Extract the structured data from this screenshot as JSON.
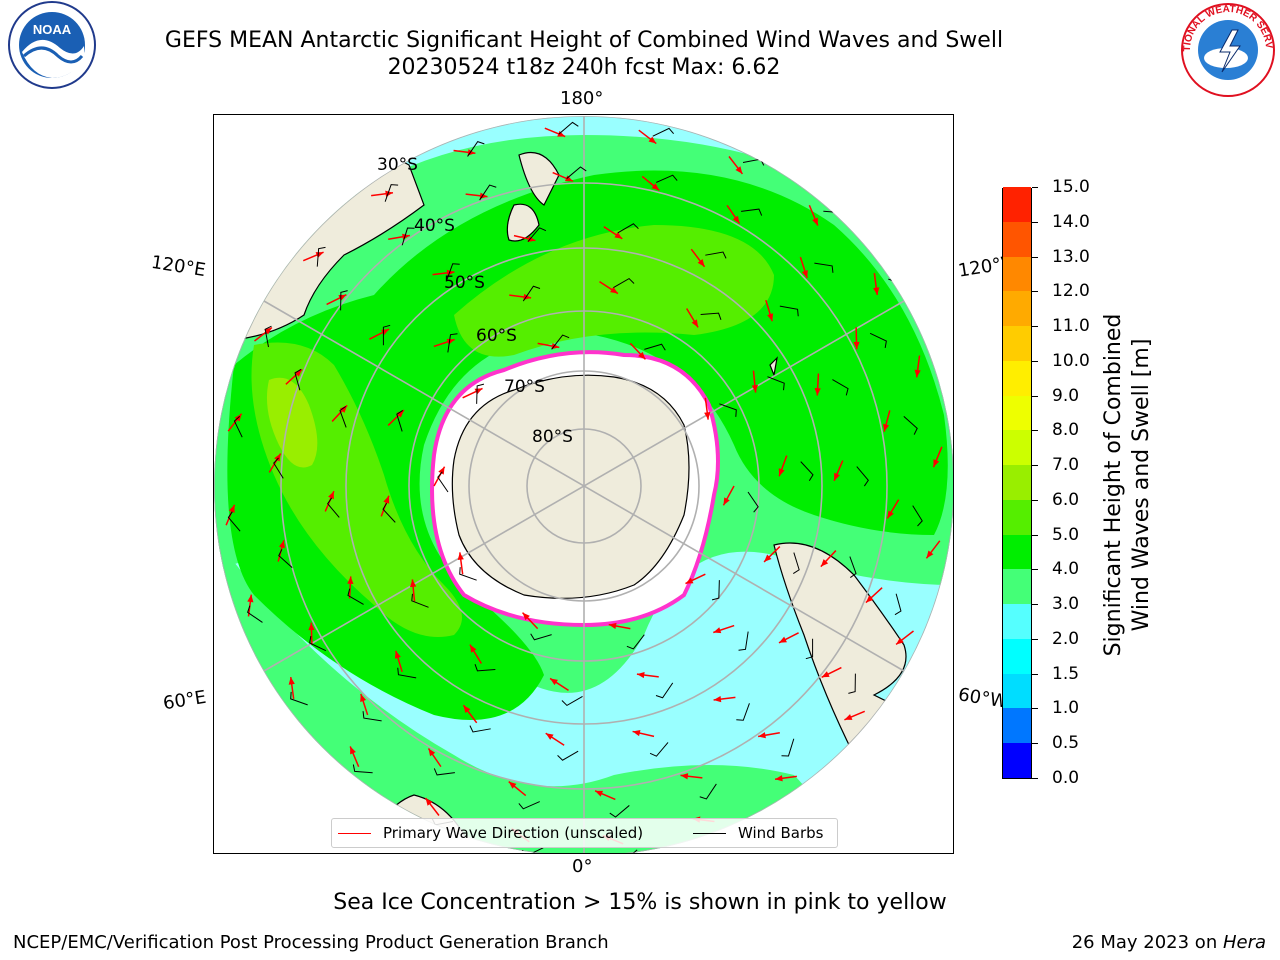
{
  "header": {
    "title_line1": "GEFS MEAN Antarctic Significant Height of Combined Wind Waves and Swell",
    "title_line2": "20230524 t18z 240h fcst   Max: 6.62"
  },
  "logos": {
    "left": {
      "icon": "noaa-logo",
      "text": "NOAA"
    },
    "right": {
      "icon": "nws-logo",
      "text": "NATIONAL WEATHER SERVICE"
    }
  },
  "map": {
    "projection": "south-polar-stereographic",
    "longitude_labels": {
      "top": "180°",
      "bottom": "0°",
      "upper_left": "120°E",
      "upper_right": "120°W",
      "lower_left": "60°E",
      "lower_right": "60°W"
    },
    "latitude_labels": [
      "30°S",
      "40°S",
      "50°S",
      "60°S",
      "70°S",
      "80°S"
    ],
    "colors": {
      "land": "#efecdc",
      "ice_edge": "#ff33cc",
      "wave_arrows": "#ff0000",
      "wind_barbs": "#000000",
      "graticule": "#b0b0b0"
    }
  },
  "legend": {
    "primary_wave": "Primary Wave Direction (unscaled)",
    "wind_barbs": "Wind Barbs"
  },
  "colorbar": {
    "label_line1": "Significant Height of Combined",
    "label_line2": "Wind Waves and Swell [m]",
    "ticks": [
      "0.0",
      "0.5",
      "1.0",
      "1.5",
      "2.0",
      "3.0",
      "4.0",
      "5.0",
      "6.0",
      "7.0",
      "8.0",
      "9.0",
      "10.0",
      "11.0",
      "12.0",
      "13.0",
      "14.0",
      "15.0"
    ],
    "colors": [
      "#0000ff",
      "#0077ff",
      "#00ddff",
      "#00ffff",
      "#55ffff",
      "#99ffff",
      "#44ff77",
      "#00ee00",
      "#55ee00",
      "#99ee00",
      "#ccff00",
      "#eeff00",
      "#ffee00",
      "#ffcc00",
      "#ffaa00",
      "#ff8800",
      "#ff5500",
      "#ff2200",
      "#ff0000"
    ]
  },
  "subtitle": "Sea Ice Concentration > 15% is shown in pink to yellow",
  "footer": {
    "left": "NCEP/EMC/Verification Post Processing Product Generation Branch",
    "right_date": "26 May 2023 on ",
    "right_host": "Hera"
  }
}
